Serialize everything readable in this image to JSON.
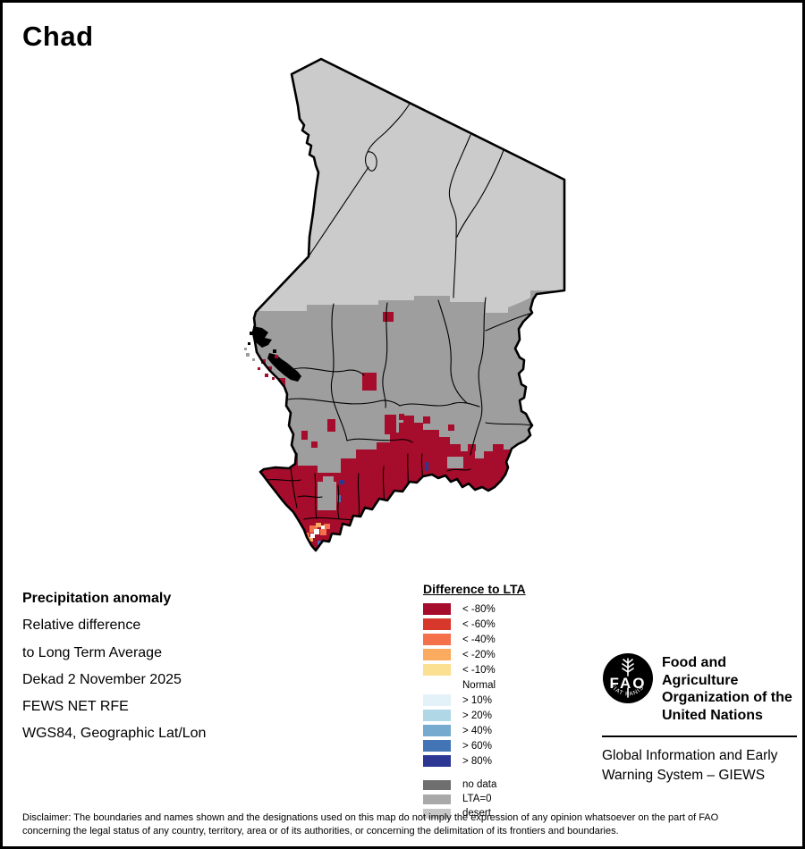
{
  "title": "Chad",
  "info": {
    "heading": "Precipitation anomaly",
    "lines": [
      "Relative difference",
      "to Long Term Average",
      "Dekad 2 November 2025",
      "FEWS NET RFE",
      "WGS84, Geographic Lat/Lon"
    ]
  },
  "legend": {
    "title": "Difference to LTA",
    "classes": [
      {
        "label": "< -80%",
        "color": "#a60c2b"
      },
      {
        "label": "< -60%",
        "color": "#d7382b"
      },
      {
        "label": "< -40%",
        "color": "#f4714b"
      },
      {
        "label": "< -20%",
        "color": "#fbab60"
      },
      {
        "label": "< -10%",
        "color": "#fbe092"
      },
      {
        "label": "Normal",
        "color": "#ffffff"
      },
      {
        "label": "> 10%",
        "color": "#e3f1f9"
      },
      {
        "label": "> 20%",
        "color": "#b0d7e6"
      },
      {
        "label": "> 40%",
        "color": "#76aacf"
      },
      {
        "label": "> 60%",
        "color": "#4374b6"
      },
      {
        "label": "> 80%",
        "color": "#2c3794"
      }
    ],
    "extra_classes": [
      {
        "label": "no data",
        "color": "#6f6f6f"
      },
      {
        "label": "LTA=0",
        "color": "#a9a9a9"
      },
      {
        "label": "desert",
        "color": "#c8c8c8"
      }
    ]
  },
  "map": {
    "country": "Chad",
    "colors": {
      "desert": "#cbcbcb",
      "lta0": "#9e9e9e",
      "neg80": "#a60c2b",
      "neg40": "#f4714b",
      "neg20": "#fbab60",
      "normal": "#ffffff",
      "pos60": "#4374b6",
      "pos80": "#2c3794",
      "water": "#000000",
      "line": "#000000"
    }
  },
  "fao": {
    "logo_text": "FAO",
    "logo_motto": "FIAT  PANIS",
    "org_lines": [
      "Food and Agriculture",
      "Organization of the",
      "United Nations"
    ],
    "giews_lines": [
      "Global Information and Early",
      "Warning System – GIEWS"
    ]
  },
  "disclaimer": {
    "line1": "Disclaimer: The boundaries and names shown and the designations used on this map do not imply the expression of any opinion whatsoever on the part of FAO",
    "line2": "concerning the legal status of any country, territory, area or of its authorities, or concerning the delimitation of its frontiers and boundaries."
  }
}
